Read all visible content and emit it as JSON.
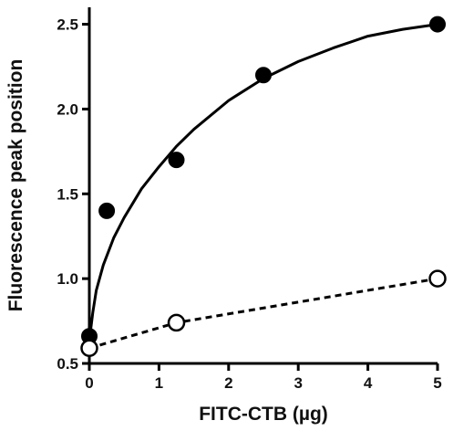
{
  "chart_data": {
    "type": "scatter",
    "title": "",
    "xlabel": "FITC-CTB (µg)",
    "ylabel": "Fluorescence peak position",
    "xlim": [
      0,
      5
    ],
    "ylim": [
      0.5,
      2.6
    ],
    "x_ticks": [
      0,
      1,
      2,
      3,
      4,
      5
    ],
    "y_ticks": [
      0.5,
      1.0,
      1.5,
      2.0,
      2.5
    ],
    "x_tick_labels": [
      "0",
      "1",
      "2",
      "3",
      "4",
      "5"
    ],
    "y_tick_labels": [
      "0.5",
      "1.0",
      "1.5",
      "2.0",
      "2.5"
    ],
    "grid": false,
    "legend": "none",
    "series": [
      {
        "marker": "filled-circle",
        "color": "#000000",
        "line": "solid fitted curve",
        "points": [
          {
            "x": 0,
            "y": 0.66
          },
          {
            "x": 0.25,
            "y": 1.4
          },
          {
            "x": 1.25,
            "y": 1.7
          },
          {
            "x": 2.5,
            "y": 2.2
          },
          {
            "x": 5,
            "y": 2.5
          }
        ],
        "fit_curve": [
          {
            "x": 0,
            "y": 0.6
          },
          {
            "x": 0.02,
            "y": 0.7
          },
          {
            "x": 0.05,
            "y": 0.8
          },
          {
            "x": 0.1,
            "y": 0.93
          },
          {
            "x": 0.2,
            "y": 1.08
          },
          {
            "x": 0.35,
            "y": 1.24
          },
          {
            "x": 0.5,
            "y": 1.36
          },
          {
            "x": 0.75,
            "y": 1.53
          },
          {
            "x": 1.0,
            "y": 1.66
          },
          {
            "x": 1.25,
            "y": 1.78
          },
          {
            "x": 1.5,
            "y": 1.88
          },
          {
            "x": 2.0,
            "y": 2.05
          },
          {
            "x": 2.5,
            "y": 2.18
          },
          {
            "x": 3.0,
            "y": 2.28
          },
          {
            "x": 3.5,
            "y": 2.36
          },
          {
            "x": 4.0,
            "y": 2.43
          },
          {
            "x": 4.5,
            "y": 2.47
          },
          {
            "x": 5.0,
            "y": 2.5
          }
        ]
      },
      {
        "marker": "open-circle",
        "color": "#000000",
        "line": "dashed",
        "points": [
          {
            "x": 0,
            "y": 0.59
          },
          {
            "x": 1.25,
            "y": 0.74
          },
          {
            "x": 5,
            "y": 1.0
          }
        ]
      }
    ]
  }
}
